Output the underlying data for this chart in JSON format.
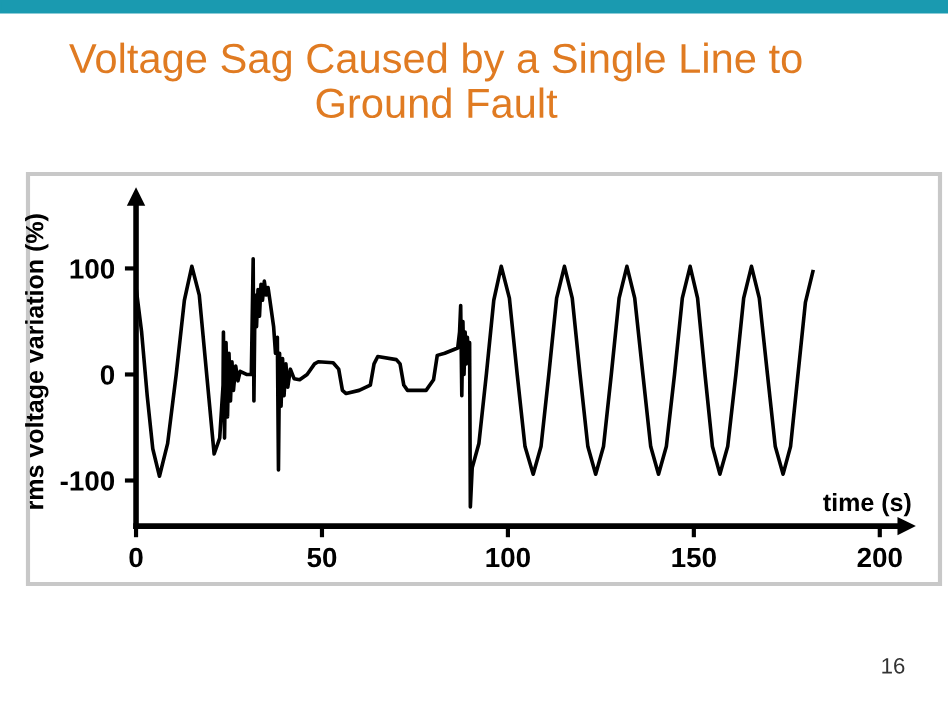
{
  "chart_data": {
    "type": "line",
    "title": "Voltage Sag Caused by a Single Line to Ground Fault",
    "xlabel": "time (s)",
    "ylabel": "rms voltage variation (%)",
    "annotations": [
      "16"
    ],
    "series": [
      {
        "color": "#000000",
        "x": [
          0,
          1.5,
          3,
          4.5,
          6.3,
          8.5,
          10.8,
          13,
          15,
          17,
          19,
          21,
          22.5,
          23.4,
          23.5,
          23.8,
          24.2,
          24.6,
          25,
          25.4,
          25.8,
          26.2,
          26.8,
          27.4,
          28,
          29.7,
          31,
          31.5,
          31.7,
          32,
          32.4,
          32.8,
          33.2,
          33.6,
          34,
          34.5,
          35,
          35.5,
          36,
          37,
          37.5,
          38,
          38.3,
          38.6,
          39,
          39.4,
          39.8,
          40.3,
          40.8,
          41.5,
          42.5,
          44,
          46,
          48,
          49,
          53,
          54.5,
          55.5,
          56.5,
          60,
          63,
          64,
          65,
          70,
          71,
          72,
          73,
          78,
          80,
          81,
          83,
          86.5,
          87,
          87.3,
          87.6,
          87.9,
          88.2,
          88.5,
          88.8,
          89.1,
          89.4,
          89.7,
          89.9,
          90.4,
          92.2,
          94.2,
          96.2,
          98.2,
          100.4,
          102.5,
          104.6,
          106.8,
          108.9,
          111,
          113.1,
          115.2,
          117.3,
          119.4,
          121.5,
          123.6,
          125.7,
          127.8,
          129.9,
          132,
          134.1,
          136.3,
          138.4,
          140.5,
          142.6,
          144.8,
          146.9,
          149,
          151,
          153,
          155,
          157,
          159.1,
          161.3,
          163.4,
          165.5,
          167.6,
          169.8,
          171.9,
          174,
          176,
          178,
          180,
          182
        ],
        "values": [
          82,
          40,
          -20,
          -70,
          -96,
          -65,
          0,
          70,
          102,
          75,
          0,
          -75,
          -60,
          -10,
          40,
          -60,
          30,
          -40,
          20,
          -25,
          12,
          -15,
          8,
          -6,
          3,
          0,
          0,
          109,
          -25,
          75,
          45,
          80,
          55,
          85,
          70,
          88,
          75,
          82,
          70,
          45,
          20,
          35,
          -90,
          20,
          -30,
          15,
          -20,
          10,
          -12,
          5,
          -4,
          -5,
          0,
          10,
          12,
          11,
          5,
          -15,
          -18,
          -15,
          -10,
          10,
          17,
          14,
          10,
          -10,
          -15,
          -15,
          -5,
          18,
          20,
          25,
          40,
          65,
          -20,
          50,
          0,
          40,
          10,
          35,
          15,
          30,
          -125,
          -88,
          -65,
          0,
          70,
          102,
          72,
          0,
          -68,
          -94,
          -68,
          0,
          72,
          102,
          72,
          0,
          -68,
          -94,
          -68,
          0,
          72,
          102,
          72,
          0,
          -68,
          -94,
          -68,
          0,
          72,
          102,
          72,
          0,
          -68,
          -94,
          -68,
          0,
          72,
          102,
          72,
          0,
          -68,
          -94,
          -68,
          0,
          68,
          97
        ]
      }
    ],
    "xlim": [
      0,
      207
    ],
    "ylim": [
      -143,
      167
    ],
    "xticks": [
      0,
      50,
      100,
      150,
      200
    ],
    "yticks": [
      -100,
      0,
      100
    ],
    "grid": false,
    "legend": false,
    "line_style": "solid",
    "marker": "none"
  }
}
